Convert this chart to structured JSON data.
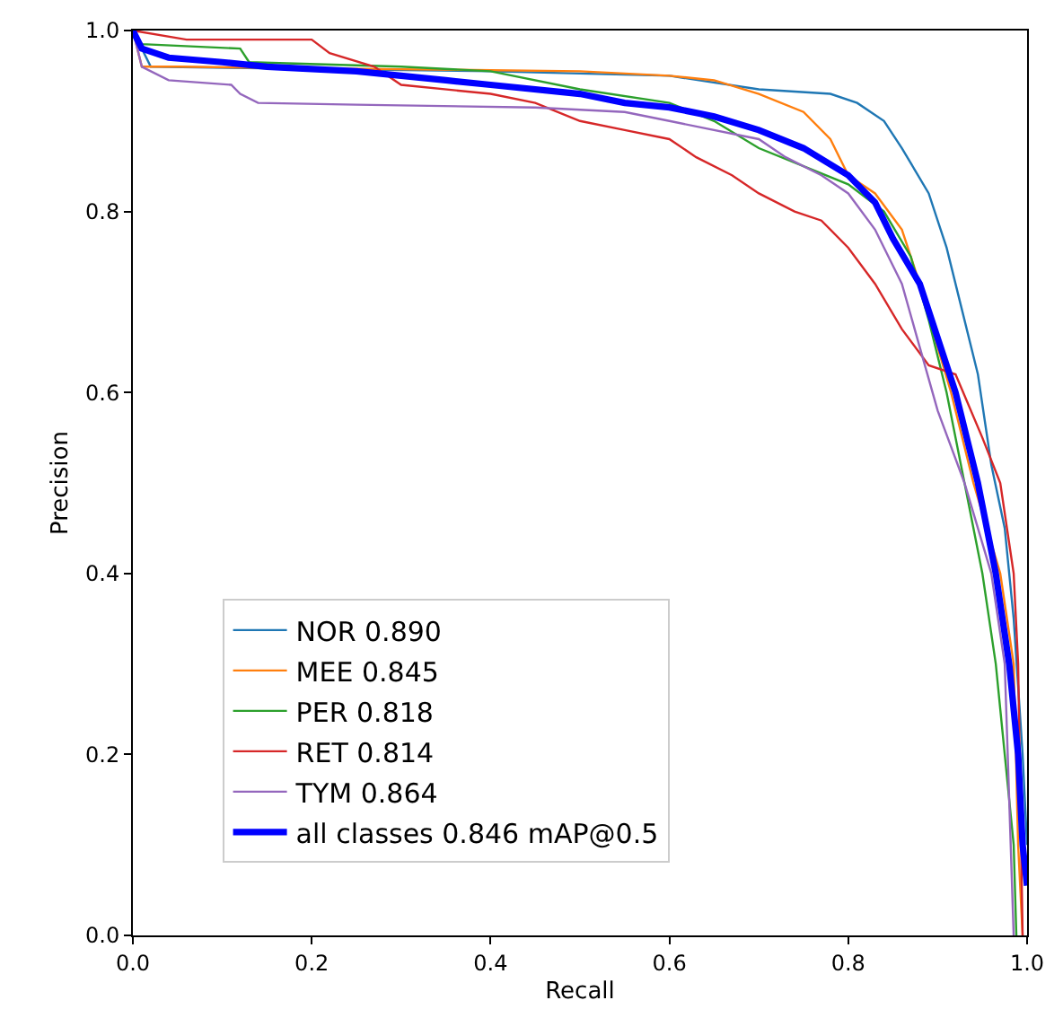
{
  "chart_data": {
    "type": "line",
    "xlabel": "Recall",
    "ylabel": "Precision",
    "xlim": [
      0,
      1
    ],
    "ylim": [
      0,
      1
    ],
    "xticks": [
      {
        "value": 0,
        "label": "0.0"
      },
      {
        "value": 0.2,
        "label": "0.2"
      },
      {
        "value": 0.4,
        "label": "0.4"
      },
      {
        "value": 0.6,
        "label": "0.6"
      },
      {
        "value": 0.8,
        "label": "0.8"
      },
      {
        "value": 1,
        "label": "1.0"
      }
    ],
    "yticks": [
      {
        "value": 0,
        "label": "0.0"
      },
      {
        "value": 0.2,
        "label": "0.2"
      },
      {
        "value": 0.4,
        "label": "0.4"
      },
      {
        "value": 0.6,
        "label": "0.6"
      },
      {
        "value": 0.8,
        "label": "0.8"
      },
      {
        "value": 1,
        "label": "1.0"
      }
    ],
    "legend": "bottom left",
    "marker": "none",
    "line_style": "solid",
    "series": [
      {
        "name": "NOR 0.890",
        "color": "#1f77b4",
        "x": [
          0,
          0.02,
          0.4,
          0.6,
          0.7,
          0.78,
          0.81,
          0.84,
          0.86,
          0.89,
          0.91,
          0.925,
          0.945,
          0.96,
          0.975,
          0.985,
          0.995,
          1.0
        ],
        "values": [
          1.0,
          0.96,
          0.955,
          0.95,
          0.935,
          0.93,
          0.92,
          0.9,
          0.87,
          0.82,
          0.76,
          0.7,
          0.62,
          0.52,
          0.45,
          0.35,
          0.2,
          0.1
        ]
      },
      {
        "name": "MEE 0.845",
        "color": "#ff7f0e",
        "x": [
          0,
          0.01,
          0.05,
          0.5,
          0.6,
          0.65,
          0.7,
          0.75,
          0.78,
          0.8,
          0.83,
          0.86,
          0.88,
          0.9,
          0.915,
          0.94,
          0.97,
          0.985,
          0.99,
          0.995
        ],
        "values": [
          1.0,
          0.96,
          0.96,
          0.955,
          0.95,
          0.945,
          0.93,
          0.91,
          0.88,
          0.84,
          0.82,
          0.78,
          0.72,
          0.65,
          0.6,
          0.5,
          0.4,
          0.3,
          0.1,
          0.0
        ]
      },
      {
        "name": "PER 0.818",
        "color": "#2ca02c",
        "x": [
          0,
          0.01,
          0.12,
          0.13,
          0.3,
          0.4,
          0.5,
          0.6,
          0.65,
          0.7,
          0.75,
          0.8,
          0.84,
          0.87,
          0.89,
          0.91,
          0.93,
          0.95,
          0.965,
          0.985,
          0.988
        ],
        "values": [
          1.0,
          0.985,
          0.98,
          0.965,
          0.96,
          0.955,
          0.935,
          0.92,
          0.9,
          0.87,
          0.85,
          0.83,
          0.8,
          0.75,
          0.68,
          0.6,
          0.5,
          0.4,
          0.3,
          0.1,
          0.0
        ]
      },
      {
        "name": "RET 0.814",
        "color": "#d62728",
        "x": [
          0,
          0.06,
          0.2,
          0.22,
          0.27,
          0.3,
          0.4,
          0.45,
          0.5,
          0.55,
          0.6,
          0.63,
          0.67,
          0.7,
          0.74,
          0.77,
          0.8,
          0.83,
          0.86,
          0.89,
          0.92,
          0.95,
          0.97,
          0.985,
          0.99,
          0.995
        ],
        "values": [
          1.0,
          0.99,
          0.99,
          0.975,
          0.96,
          0.94,
          0.93,
          0.92,
          0.9,
          0.89,
          0.88,
          0.86,
          0.84,
          0.82,
          0.8,
          0.79,
          0.76,
          0.72,
          0.67,
          0.63,
          0.62,
          0.55,
          0.5,
          0.4,
          0.3,
          0.0
        ]
      },
      {
        "name": "TYM 0.864",
        "color": "#9467bd",
        "x": [
          0,
          0.01,
          0.04,
          0.11,
          0.12,
          0.14,
          0.25,
          0.45,
          0.55,
          0.6,
          0.7,
          0.73,
          0.77,
          0.8,
          0.83,
          0.86,
          0.88,
          0.9,
          0.93,
          0.96,
          0.975,
          0.985
        ],
        "values": [
          1.0,
          0.96,
          0.945,
          0.94,
          0.93,
          0.92,
          0.918,
          0.915,
          0.91,
          0.9,
          0.88,
          0.86,
          0.84,
          0.82,
          0.78,
          0.72,
          0.65,
          0.58,
          0.5,
          0.4,
          0.3,
          0.0
        ]
      },
      {
        "name": "all classes 0.846 mAP@0.5",
        "color": "#0000ff",
        "x": [
          0,
          0.01,
          0.04,
          0.1,
          0.15,
          0.25,
          0.3,
          0.35,
          0.4,
          0.5,
          0.55,
          0.6,
          0.65,
          0.7,
          0.75,
          0.8,
          0.83,
          0.85,
          0.88,
          0.9,
          0.92,
          0.945,
          0.965,
          0.98,
          0.99,
          0.995,
          1.0
        ],
        "values": [
          1.0,
          0.98,
          0.97,
          0.965,
          0.96,
          0.955,
          0.95,
          0.945,
          0.94,
          0.93,
          0.92,
          0.915,
          0.905,
          0.89,
          0.87,
          0.84,
          0.81,
          0.77,
          0.72,
          0.66,
          0.6,
          0.5,
          0.4,
          0.3,
          0.2,
          0.1,
          0.055
        ]
      }
    ]
  }
}
